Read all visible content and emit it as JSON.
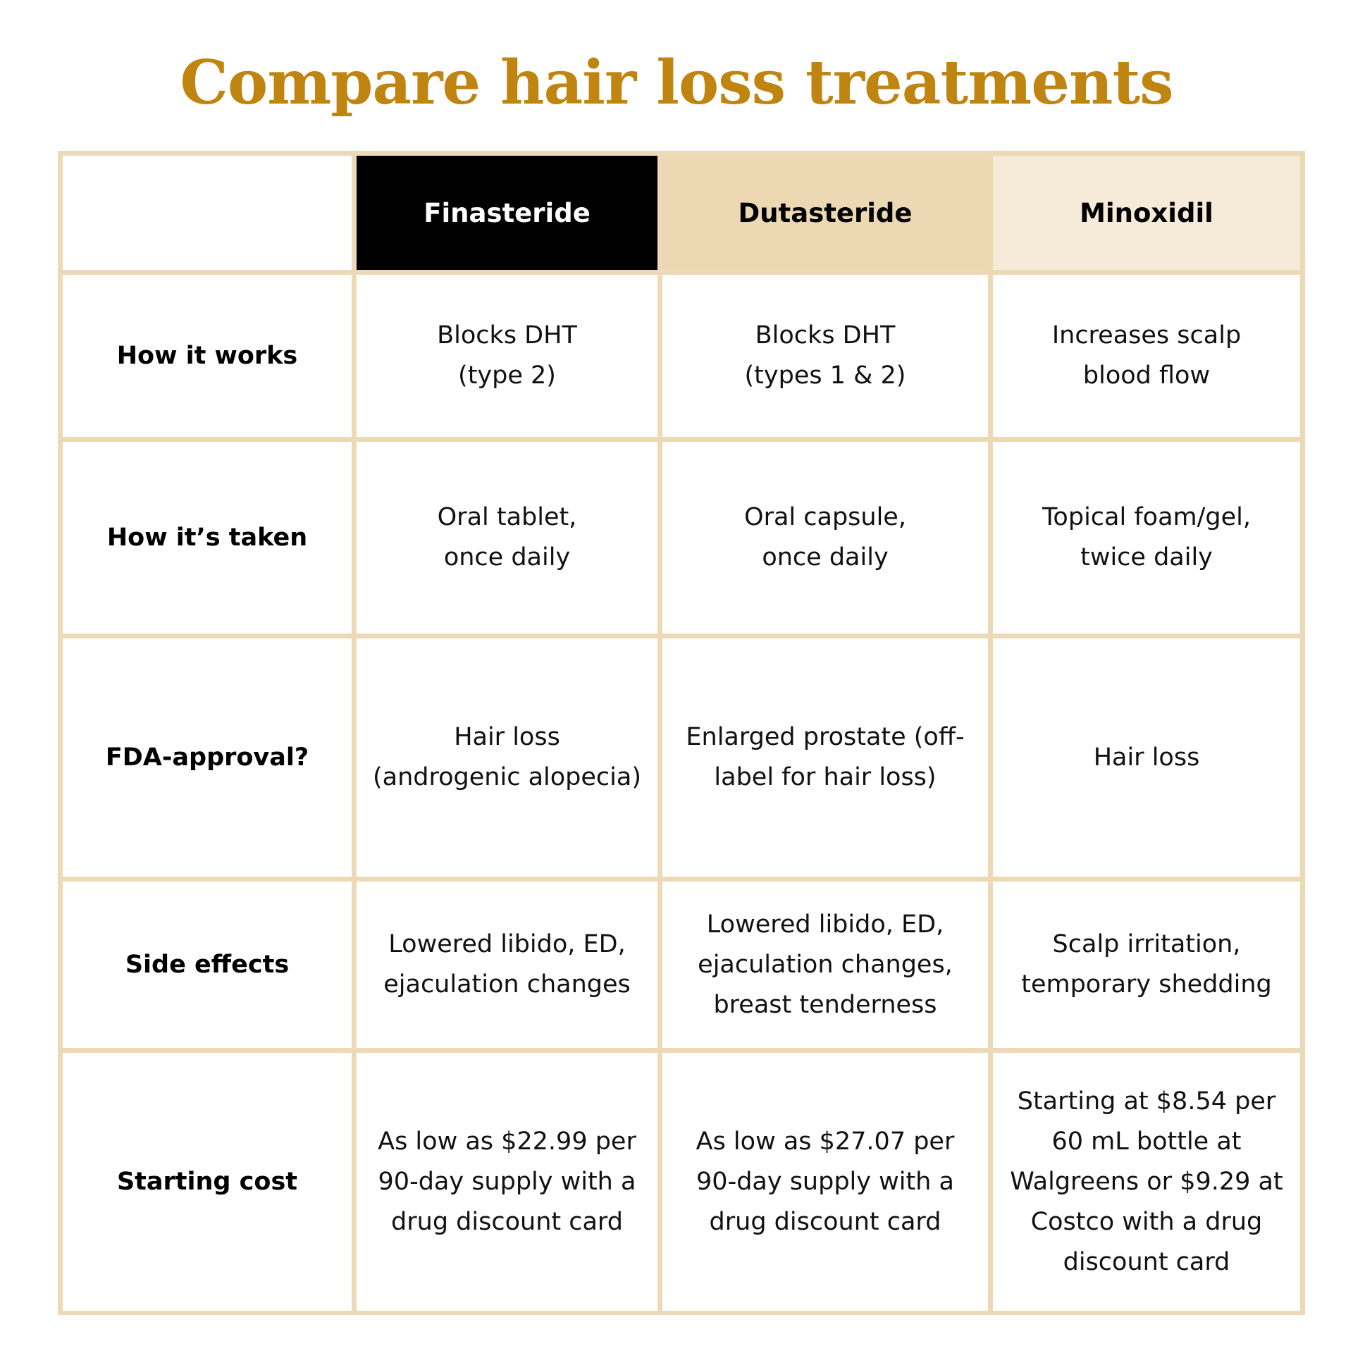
{
  "title": "Compare hair loss treatments",
  "colors": {
    "title": "#c08410",
    "grid": "#ecdab7",
    "finasteride_header_bg": "#000000",
    "dutasteride_header_bg": "#edd8b4",
    "minoxidil_header_bg": "#f6ebd9"
  },
  "columns": [
    "Finasteride",
    "Dutasteride",
    "Minoxidil"
  ],
  "rows": [
    {
      "label": "How it works",
      "values": [
        [
          "Blocks DHT",
          "(type 2)"
        ],
        [
          "Blocks DHT",
          "(types 1 & 2)"
        ],
        [
          "Increases scalp",
          "blood flow"
        ]
      ]
    },
    {
      "label": "How it’s taken",
      "values": [
        [
          "Oral tablet,",
          "once daily"
        ],
        [
          "Oral capsule,",
          "once daily"
        ],
        [
          "Topical foam/gel,",
          "twice daily"
        ]
      ]
    },
    {
      "label": "FDA-approval?",
      "values": [
        [
          "Hair loss",
          "(androgenic alopecia)"
        ],
        [
          "Enlarged prostate (off-",
          "label for hair loss)"
        ],
        [
          "Hair loss"
        ]
      ]
    },
    {
      "label": "Side effects",
      "values": [
        [
          "Lowered libido, ED,",
          "ejaculation changes"
        ],
        [
          "Lowered libido, ED,",
          "ejaculation changes,",
          "breast tenderness"
        ],
        [
          "Scalp irritation,",
          "temporary shedding"
        ]
      ]
    },
    {
      "label": "Starting cost",
      "values": [
        [
          "As low as $22.99 per",
          "90-day supply with a",
          "drug discount card"
        ],
        [
          "As low as $27.07 per",
          "90-day supply with a",
          "drug discount card"
        ],
        [
          "Starting at $8.54 per",
          "60 mL bottle at",
          "Walgreens or $9.29 at",
          "Costco with a drug",
          "discount card"
        ]
      ]
    }
  ]
}
